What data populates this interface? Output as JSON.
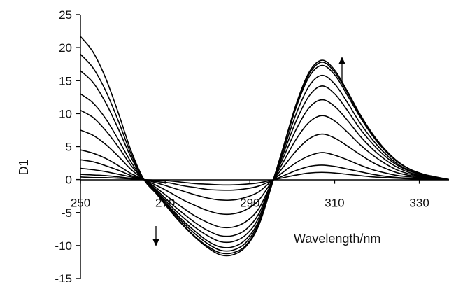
{
  "chart_data": {
    "type": "line",
    "xlabel": "Wavelength/nm",
    "ylabel": "D1",
    "xlim": [
      250,
      337
    ],
    "ylim": [
      -15,
      25
    ],
    "x_ticks": [
      250,
      270,
      290,
      310,
      330
    ],
    "y_ticks": [
      -15,
      -10,
      -5,
      0,
      5,
      10,
      15,
      20,
      25
    ],
    "x_tick_labels": [
      "250",
      "270",
      "290",
      "310",
      "330"
    ],
    "y_tick_labels": [
      "-15",
      "-10",
      "-5",
      "0",
      "5",
      "10",
      "15",
      "20",
      "25"
    ],
    "grid": false,
    "legend": "none",
    "annotations": [
      {
        "type": "arrow",
        "direction": "up",
        "near_x": 312,
        "near_y": 16
      },
      {
        "type": "arrow",
        "direction": "down",
        "near_x": 271,
        "near_y": -10
      }
    ],
    "x": [
      250,
      253,
      256,
      259,
      262,
      265,
      268,
      271,
      274,
      277,
      280,
      283,
      286,
      289,
      292,
      295,
      298,
      301,
      304,
      307,
      310,
      313,
      316,
      319,
      322,
      325,
      328,
      331,
      334,
      337
    ],
    "series": [
      {
        "values": [
          0.4,
          0.3,
          0.3,
          0.2,
          0.1,
          0.0,
          -0.1,
          -0.2,
          -0.4,
          -0.6,
          -0.7,
          -0.8,
          -0.8,
          -0.7,
          -0.5,
          -0.1,
          0.3,
          0.7,
          1.0,
          1.1,
          1.0,
          0.8,
          0.6,
          0.4,
          0.3,
          0.2,
          0.1,
          0.1,
          0.0,
          0.0
        ]
      },
      {
        "values": [
          0.8,
          0.7,
          0.6,
          0.4,
          0.2,
          0.0,
          -0.3,
          -0.5,
          -0.9,
          -1.2,
          -1.5,
          -1.6,
          -1.6,
          -1.4,
          -1.0,
          -0.2,
          0.6,
          1.4,
          2.0,
          2.2,
          2.0,
          1.6,
          1.2,
          0.8,
          0.5,
          0.3,
          0.2,
          0.1,
          0.1,
          0.0
        ]
      },
      {
        "values": [
          1.7,
          1.5,
          1.2,
          0.8,
          0.4,
          0.0,
          -0.5,
          -1.1,
          -1.7,
          -2.3,
          -2.8,
          -3.1,
          -3.1,
          -2.7,
          -1.9,
          -0.3,
          1.2,
          2.6,
          3.6,
          4.1,
          3.7,
          3.0,
          2.2,
          1.5,
          1.0,
          0.6,
          0.4,
          0.2,
          0.1,
          0.0
        ]
      },
      {
        "values": [
          3.0,
          2.7,
          2.1,
          1.4,
          0.6,
          0.0,
          -0.9,
          -1.9,
          -3.0,
          -3.9,
          -4.7,
          -5.2,
          -5.2,
          -4.6,
          -3.2,
          -0.5,
          2.0,
          4.4,
          6.2,
          6.9,
          6.3,
          5.1,
          3.8,
          2.6,
          1.7,
          1.0,
          0.6,
          0.3,
          0.1,
          0.0
        ]
      },
      {
        "values": [
          4.5,
          4.0,
          3.2,
          2.1,
          0.9,
          0.0,
          -1.3,
          -2.8,
          -4.2,
          -5.5,
          -6.5,
          -7.2,
          -7.2,
          -6.4,
          -4.5,
          -0.7,
          2.8,
          6.2,
          8.7,
          9.7,
          8.9,
          7.2,
          5.3,
          3.7,
          2.4,
          1.4,
          0.8,
          0.4,
          0.2,
          0.0
        ]
      },
      {
        "values": [
          7.5,
          6.7,
          5.3,
          3.5,
          1.5,
          0.0,
          -1.6,
          -3.4,
          -5.0,
          -6.5,
          -7.7,
          -8.5,
          -8.5,
          -7.6,
          -5.3,
          -0.8,
          3.5,
          7.7,
          10.9,
          12.1,
          11.1,
          9.0,
          6.6,
          4.6,
          3.0,
          1.8,
          1.0,
          0.5,
          0.2,
          0.0
        ]
      },
      {
        "values": [
          10.5,
          9.4,
          7.4,
          4.9,
          2.1,
          0.0,
          -1.8,
          -3.8,
          -5.6,
          -7.2,
          -8.5,
          -9.4,
          -9.4,
          -8.4,
          -5.9,
          -0.9,
          4.1,
          9.0,
          12.7,
          14.2,
          13.0,
          10.5,
          7.7,
          5.4,
          3.5,
          2.1,
          1.2,
          0.6,
          0.3,
          0.0
        ]
      },
      {
        "values": [
          13.0,
          11.6,
          9.2,
          6.0,
          2.6,
          0.0,
          -2.0,
          -4.1,
          -6.1,
          -7.8,
          -9.3,
          -10.2,
          -10.2,
          -9.1,
          -6.4,
          -1.0,
          4.6,
          10.1,
          14.2,
          15.8,
          14.5,
          11.7,
          8.6,
          6.0,
          3.9,
          2.3,
          1.3,
          0.7,
          0.3,
          0.0
        ]
      },
      {
        "values": [
          16.5,
          14.7,
          11.6,
          7.6,
          3.3,
          0.0,
          -2.1,
          -4.3,
          -6.4,
          -8.2,
          -9.7,
          -10.7,
          -10.7,
          -9.6,
          -6.7,
          -1.1,
          5.0,
          11.1,
          15.6,
          17.3,
          15.9,
          12.8,
          9.5,
          6.6,
          4.3,
          2.6,
          1.5,
          0.8,
          0.3,
          0.0
        ]
      },
      {
        "values": [
          19.0,
          16.9,
          13.4,
          8.8,
          3.8,
          0.0,
          -2.2,
          -4.5,
          -6.7,
          -8.6,
          -10.1,
          -11.1,
          -11.1,
          -10.0,
          -7.0,
          -1.1,
          5.1,
          11.4,
          16.0,
          17.8,
          16.3,
          13.2,
          9.7,
          6.8,
          4.4,
          2.6,
          1.5,
          0.8,
          0.3,
          0.0
        ]
      },
      {
        "values": [
          21.7,
          19.3,
          15.3,
          10.0,
          4.3,
          0.0,
          -2.2,
          -4.6,
          -6.8,
          -8.7,
          -10.3,
          -11.4,
          -11.4,
          -10.2,
          -7.1,
          -1.2,
          5.2,
          11.6,
          16.3,
          18.1,
          16.6,
          13.4,
          9.9,
          6.9,
          4.5,
          2.7,
          1.5,
          0.8,
          0.4,
          0.0
        ]
      }
    ]
  }
}
